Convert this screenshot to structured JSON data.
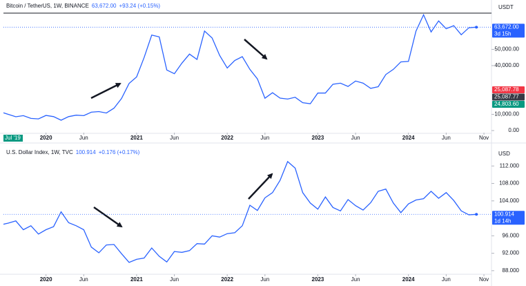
{
  "chart_data": [
    {
      "type": "line",
      "header": {
        "title": "Bitcoin / TetherUS, 1W, BINANCE",
        "price": "63,672.00",
        "change": "+93.24 (+0.15%)"
      },
      "currency": "USDT",
      "color": "#2962ff",
      "x": [
        "2019-07",
        "2019-08",
        "2019-09",
        "2019-10",
        "2019-11",
        "2019-12",
        "2020-01",
        "2020-02",
        "2020-03",
        "2020-04",
        "2020-05",
        "2020-06",
        "2020-07",
        "2020-08",
        "2020-09",
        "2020-10",
        "2020-11",
        "2020-12",
        "2021-01",
        "2021-02",
        "2021-03",
        "2021-04",
        "2021-05",
        "2021-06",
        "2021-07",
        "2021-08",
        "2021-09",
        "2021-10",
        "2021-11",
        "2021-12",
        "2022-01",
        "2022-02",
        "2022-03",
        "2022-04",
        "2022-05",
        "2022-06",
        "2022-07",
        "2022-08",
        "2022-09",
        "2022-10",
        "2022-11",
        "2022-12",
        "2023-01",
        "2023-02",
        "2023-03",
        "2023-04",
        "2023-05",
        "2023-06",
        "2023-07",
        "2023-08",
        "2023-09",
        "2023-10",
        "2023-11",
        "2023-12",
        "2024-01",
        "2024-02",
        "2024-03",
        "2024-04",
        "2024-05",
        "2024-06",
        "2024-07",
        "2024-08",
        "2024-09",
        "2024-10"
      ],
      "values": [
        11500,
        10000,
        8500,
        9200,
        7500,
        7200,
        9300,
        8600,
        6400,
        8600,
        9500,
        9200,
        11300,
        11700,
        10800,
        13800,
        19700,
        29000,
        33000,
        45000,
        58800,
        57700,
        37300,
        35000,
        41500,
        47100,
        43800,
        61300,
        57000,
        46300,
        38500,
        43200,
        45500,
        37700,
        31800,
        19900,
        23300,
        20000,
        19400,
        20500,
        17200,
        16500,
        23100,
        23100,
        28500,
        29200,
        27200,
        30500,
        29200,
        26000,
        27000,
        34500,
        37700,
        42300,
        42600,
        61200,
        71300,
        60700,
        67500,
        62700,
        64600,
        59000,
        63300,
        63672
      ],
      "xlim": [
        "2019-07",
        "2024-12"
      ],
      "xticks": [
        {
          "value": "2020-01",
          "label": "2020"
        },
        {
          "value": "2020-06",
          "label": "Jun"
        },
        {
          "value": "2021-01",
          "label": "2021"
        },
        {
          "value": "2021-06",
          "label": "Jun"
        },
        {
          "value": "2022-01",
          "label": "2022"
        },
        {
          "value": "2022-06",
          "label": "Jun"
        },
        {
          "value": "2023-01",
          "label": "2023"
        },
        {
          "value": "2023-06",
          "label": "Jun"
        },
        {
          "value": "2024-01",
          "label": "2024"
        },
        {
          "value": "2024-06",
          "label": "Jun"
        },
        {
          "value": "2024-11",
          "label": "Nov"
        }
      ],
      "ylim": [
        0,
        77000
      ],
      "yticks": [
        {
          "value": 0,
          "label": "0.00"
        },
        {
          "value": 10000,
          "label": "10,000.00"
        },
        {
          "value": 40000,
          "label": "40,000.00"
        },
        {
          "value": 50000,
          "label": "50,000.00"
        }
      ],
      "cursor_date": "Jul '19",
      "price_tags": [
        {
          "value": 63672,
          "label": "63,672.00",
          "sub": "3d 15h",
          "color": "#2962ff"
        },
        {
          "value": 25087.78,
          "label": "25,087.78",
          "color": "#f23645"
        },
        {
          "value": 25087.77,
          "label": "25,087.77",
          "color": "#363a45"
        },
        {
          "value": 24803.6,
          "label": "24,803.60",
          "color": "#089981"
        }
      ]
    },
    {
      "type": "line",
      "header": {
        "title": "U.S. Dollar Index, 1W, TVC",
        "price": "100.914",
        "change": "+0.176 (+0.17%)"
      },
      "currency": "USD",
      "color": "#2962ff",
      "x": [
        "2019-07",
        "2019-08",
        "2019-09",
        "2019-10",
        "2019-11",
        "2019-12",
        "2020-01",
        "2020-02",
        "2020-03",
        "2020-04",
        "2020-05",
        "2020-06",
        "2020-07",
        "2020-08",
        "2020-09",
        "2020-10",
        "2020-11",
        "2020-12",
        "2021-01",
        "2021-02",
        "2021-03",
        "2021-04",
        "2021-05",
        "2021-06",
        "2021-07",
        "2021-08",
        "2021-09",
        "2021-10",
        "2021-11",
        "2021-12",
        "2022-01",
        "2022-02",
        "2022-03",
        "2022-04",
        "2022-05",
        "2022-06",
        "2022-07",
        "2022-08",
        "2022-09",
        "2022-10",
        "2022-11",
        "2022-12",
        "2023-01",
        "2023-02",
        "2023-03",
        "2023-04",
        "2023-05",
        "2023-06",
        "2023-07",
        "2023-08",
        "2023-09",
        "2023-10",
        "2023-11",
        "2023-12",
        "2024-01",
        "2024-02",
        "2024-03",
        "2024-04",
        "2024-05",
        "2024-06",
        "2024-07",
        "2024-08",
        "2024-09",
        "2024-10"
      ],
      "values": [
        98.5,
        98.9,
        99.4,
        97.4,
        98.3,
        96.4,
        97.4,
        98.1,
        101.5,
        99.0,
        98.3,
        97.4,
        93.4,
        92.1,
        93.9,
        94.0,
        91.9,
        89.9,
        90.6,
        90.9,
        93.2,
        91.3,
        90.0,
        92.4,
        92.2,
        92.6,
        94.2,
        94.1,
        96.0,
        95.7,
        96.5,
        96.7,
        98.3,
        103.0,
        101.8,
        104.7,
        105.9,
        108.7,
        113.0,
        111.5,
        105.9,
        103.5,
        102.1,
        104.9,
        102.5,
        101.7,
        104.3,
        102.9,
        101.9,
        103.6,
        106.2,
        106.7,
        103.5,
        101.3,
        103.3,
        104.2,
        104.5,
        106.2,
        104.6,
        105.9,
        104.1,
        101.7,
        100.8,
        100.914
      ],
      "xlim": [
        "2019-07",
        "2024-12"
      ],
      "xticks": [
        {
          "value": "2020-01",
          "label": "2020"
        },
        {
          "value": "2020-06",
          "label": "Jun"
        },
        {
          "value": "2021-01",
          "label": "2021"
        },
        {
          "value": "2021-06",
          "label": "Jun"
        },
        {
          "value": "2022-01",
          "label": "2022"
        },
        {
          "value": "2022-06",
          "label": "Jun"
        },
        {
          "value": "2023-01",
          "label": "2023"
        },
        {
          "value": "2023-06",
          "label": "Jun"
        },
        {
          "value": "2024-01",
          "label": "2024"
        },
        {
          "value": "2024-06",
          "label": "Jun"
        },
        {
          "value": "2024-11",
          "label": "Nov"
        }
      ],
      "ylim": [
        87.5,
        116
      ],
      "yticks": [
        {
          "value": 88,
          "label": "88.000"
        },
        {
          "value": 92,
          "label": "92.000"
        },
        {
          "value": 96,
          "label": "96.000"
        },
        {
          "value": 104,
          "label": "104.000"
        },
        {
          "value": 108,
          "label": "108.000"
        },
        {
          "value": 112,
          "label": "112.000"
        }
      ],
      "price_tags": [
        {
          "value": 100.914,
          "label": "100.914",
          "sub": "1d 14h",
          "color": "#2962ff"
        }
      ]
    }
  ]
}
